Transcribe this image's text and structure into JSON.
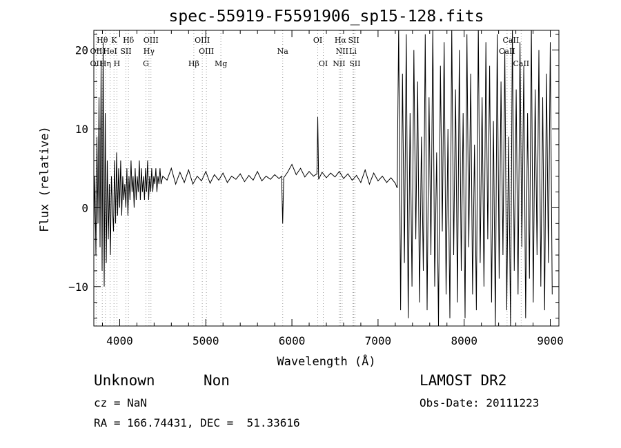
{
  "chart_data": {
    "type": "line",
    "title": "spec-55919-F5591906_sp15-128.fits",
    "xlabel": "Wavelength (Å)",
    "ylabel": "Flux (relative)",
    "xlim": [
      3700,
      9100
    ],
    "ylim": [
      -15,
      22.5
    ],
    "xticks": [
      4000,
      5000,
      6000,
      7000,
      8000,
      9000
    ],
    "xtick_labels": [
      "4000",
      "5000",
      "6000",
      "7000",
      "8000",
      "9000"
    ],
    "yticks": [
      -10,
      0,
      10,
      20
    ],
    "ytick_labels": [
      "−10",
      "0",
      "10",
      "20"
    ],
    "grid": false,
    "legend": "none",
    "line_color": "#000000",
    "marker_line_color": "#999999",
    "spectral_lines": [
      {
        "label": "Hθ",
        "x": 3798,
        "tier": 0
      },
      {
        "label": "K",
        "x": 3934,
        "tier": 0
      },
      {
        "label": "Hδ",
        "x": 4102,
        "tier": 0
      },
      {
        "label": "OIII",
        "x": 4363,
        "tier": 0
      },
      {
        "label": "OIII",
        "x": 4959,
        "tier": 0
      },
      {
        "label": "OI",
        "x": 6300,
        "tier": 0
      },
      {
        "label": "Hα",
        "x": 6563,
        "tier": 0
      },
      {
        "label": "SII",
        "x": 6717,
        "tier": 0
      },
      {
        "label": "CaII",
        "x": 8542,
        "tier": 0
      },
      {
        "label": "OII",
        "x": 3727,
        "tier": 1
      },
      {
        "label": "HeI",
        "x": 3889,
        "tier": 1
      },
      {
        "label": "SII",
        "x": 4072,
        "tier": 1
      },
      {
        "label": "Hγ",
        "x": 4340,
        "tier": 1
      },
      {
        "label": "OIII",
        "x": 5007,
        "tier": 1
      },
      {
        "label": "Na",
        "x": 5893,
        "tier": 1
      },
      {
        "label": "NII",
        "x": 6583,
        "tier": 1
      },
      {
        "label": "Li",
        "x": 6708,
        "tier": 1
      },
      {
        "label": "CaII",
        "x": 8498,
        "tier": 1
      },
      {
        "label": "OII",
        "x": 3727,
        "tier": 2
      },
      {
        "label": "Hη",
        "x": 3835,
        "tier": 2
      },
      {
        "label": "H",
        "x": 3968,
        "tier": 2
      },
      {
        "label": "G",
        "x": 4305,
        "tier": 2
      },
      {
        "label": "Hβ",
        "x": 4861,
        "tier": 2
      },
      {
        "label": "Mg",
        "x": 5175,
        "tier": 2
      },
      {
        "label": "OI",
        "x": 6364,
        "tier": 2
      },
      {
        "label": "NII",
        "x": 6548,
        "tier": 2
      },
      {
        "label": "SII",
        "x": 6731,
        "tier": 2
      },
      {
        "label": "CaII",
        "x": 8662,
        "tier": 2
      }
    ],
    "series": [
      {
        "points": [
          [
            3700,
            -3
          ],
          [
            3712,
            4
          ],
          [
            3724,
            -6
          ],
          [
            3736,
            9
          ],
          [
            3748,
            -2
          ],
          [
            3760,
            14
          ],
          [
            3772,
            -5
          ],
          [
            3784,
            18
          ],
          [
            3796,
            -8
          ],
          [
            3808,
            21
          ],
          [
            3820,
            -10
          ],
          [
            3832,
            12
          ],
          [
            3844,
            -7
          ],
          [
            3856,
            6
          ],
          [
            3868,
            -4
          ],
          [
            3880,
            3
          ],
          [
            3892,
            -6
          ],
          [
            3904,
            4
          ],
          [
            3916,
            0
          ],
          [
            3928,
            -3
          ],
          [
            3940,
            6
          ],
          [
            3952,
            -2
          ],
          [
            3964,
            7
          ],
          [
            3976,
            -1
          ],
          [
            3988,
            5
          ],
          [
            4000,
            0
          ],
          [
            4012,
            6
          ],
          [
            4024,
            -1
          ],
          [
            4036,
            4
          ],
          [
            4048,
            1
          ],
          [
            4060,
            3
          ],
          [
            4072,
            0
          ],
          [
            4084,
            5
          ],
          [
            4096,
            -1
          ],
          [
            4108,
            4
          ],
          [
            4120,
            1
          ],
          [
            4132,
            6
          ],
          [
            4144,
            2
          ],
          [
            4156,
            4
          ],
          [
            4168,
            0
          ],
          [
            4180,
            5
          ],
          [
            4192,
            1
          ],
          [
            4204,
            4
          ],
          [
            4216,
            2
          ],
          [
            4228,
            6
          ],
          [
            4240,
            1
          ],
          [
            4252,
            5
          ],
          [
            4264,
            2
          ],
          [
            4276,
            4
          ],
          [
            4288,
            1
          ],
          [
            4300,
            5
          ],
          [
            4312,
            2
          ],
          [
            4324,
            6
          ],
          [
            4336,
            1
          ],
          [
            4348,
            4
          ],
          [
            4360,
            2
          ],
          [
            4372,
            5
          ],
          [
            4384,
            2
          ],
          [
            4396,
            4
          ],
          [
            4408,
            3
          ],
          [
            4420,
            5
          ],
          [
            4432,
            2
          ],
          [
            4444,
            4
          ],
          [
            4456,
            3
          ],
          [
            4468,
            5
          ],
          [
            4480,
            3
          ],
          [
            4500,
            4
          ],
          [
            4550,
            3.5
          ],
          [
            4600,
            5
          ],
          [
            4650,
            3
          ],
          [
            4700,
            4.5
          ],
          [
            4750,
            3.2
          ],
          [
            4800,
            4.8
          ],
          [
            4850,
            3
          ],
          [
            4900,
            4
          ],
          [
            4950,
            3.4
          ],
          [
            5000,
            4.6
          ],
          [
            5050,
            3.1
          ],
          [
            5100,
            4.2
          ],
          [
            5150,
            3.5
          ],
          [
            5200,
            4.4
          ],
          [
            5250,
            3.2
          ],
          [
            5300,
            4
          ],
          [
            5350,
            3.6
          ],
          [
            5400,
            4.3
          ],
          [
            5450,
            3.3
          ],
          [
            5500,
            4.1
          ],
          [
            5550,
            3.5
          ],
          [
            5600,
            4.6
          ],
          [
            5650,
            3.4
          ],
          [
            5700,
            4
          ],
          [
            5750,
            3.6
          ],
          [
            5800,
            4.2
          ],
          [
            5850,
            3.7
          ],
          [
            5880,
            4
          ],
          [
            5893,
            -2
          ],
          [
            5905,
            3.8
          ],
          [
            5950,
            4.5
          ],
          [
            6000,
            5.5
          ],
          [
            6050,
            4.2
          ],
          [
            6100,
            5
          ],
          [
            6150,
            3.9
          ],
          [
            6200,
            4.6
          ],
          [
            6250,
            4
          ],
          [
            6290,
            4.3
          ],
          [
            6300,
            11.5
          ],
          [
            6310,
            3.6
          ],
          [
            6350,
            4.5
          ],
          [
            6400,
            3.8
          ],
          [
            6450,
            4.4
          ],
          [
            6500,
            3.9
          ],
          [
            6550,
            4.6
          ],
          [
            6600,
            3.7
          ],
          [
            6650,
            4.3
          ],
          [
            6700,
            3.5
          ],
          [
            6750,
            4.1
          ],
          [
            6800,
            3.2
          ],
          [
            6850,
            4.8
          ],
          [
            6900,
            3
          ],
          [
            6950,
            4.4
          ],
          [
            7000,
            3.4
          ],
          [
            7050,
            4
          ],
          [
            7100,
            3.2
          ],
          [
            7150,
            3.8
          ],
          [
            7200,
            3.1
          ],
          [
            7222,
            2.5
          ],
          [
            7240,
            23
          ],
          [
            7262,
            -13
          ],
          [
            7284,
            17
          ],
          [
            7306,
            -7
          ],
          [
            7328,
            22
          ],
          [
            7350,
            -14
          ],
          [
            7372,
            12
          ],
          [
            7394,
            -10
          ],
          [
            7416,
            20
          ],
          [
            7438,
            -4
          ],
          [
            7460,
            16
          ],
          [
            7482,
            -12
          ],
          [
            7504,
            9
          ],
          [
            7526,
            -8
          ],
          [
            7548,
            22
          ],
          [
            7570,
            -13
          ],
          [
            7592,
            14
          ],
          [
            7614,
            -6
          ],
          [
            7636,
            23
          ],
          [
            7658,
            -10
          ],
          [
            7680,
            7
          ],
          [
            7702,
            -15
          ],
          [
            7724,
            18
          ],
          [
            7746,
            -3
          ],
          [
            7768,
            21
          ],
          [
            7790,
            -11
          ],
          [
            7812,
            10
          ],
          [
            7834,
            -14
          ],
          [
            7856,
            23
          ],
          [
            7878,
            -6
          ],
          [
            7900,
            15
          ],
          [
            7922,
            -12
          ],
          [
            7944,
            20
          ],
          [
            7966,
            -8
          ],
          [
            7988,
            12
          ],
          [
            8010,
            -14
          ],
          [
            8032,
            22
          ],
          [
            8054,
            -5
          ],
          [
            8076,
            17
          ],
          [
            8098,
            -11
          ],
          [
            8120,
            8
          ],
          [
            8142,
            -13
          ],
          [
            8164,
            23
          ],
          [
            8186,
            -7
          ],
          [
            8208,
            14
          ],
          [
            8230,
            -10
          ],
          [
            8252,
            21
          ],
          [
            8274,
            -4
          ],
          [
            8296,
            18
          ],
          [
            8318,
            -12
          ],
          [
            8340,
            11
          ],
          [
            8362,
            -15
          ],
          [
            8384,
            22
          ],
          [
            8406,
            -9
          ],
          [
            8428,
            16
          ],
          [
            8450,
            -6
          ],
          [
            8472,
            20
          ],
          [
            8494,
            -13
          ],
          [
            8516,
            9
          ],
          [
            8538,
            -15
          ],
          [
            8560,
            23
          ],
          [
            8582,
            -8
          ],
          [
            8604,
            15
          ],
          [
            8626,
            -11
          ],
          [
            8648,
            21
          ],
          [
            8670,
            -5
          ],
          [
            8692,
            18
          ],
          [
            8714,
            -14
          ],
          [
            8736,
            12
          ],
          [
            8758,
            -9
          ],
          [
            8780,
            23
          ],
          [
            8802,
            -12
          ],
          [
            8824,
            15
          ],
          [
            8846,
            -6
          ],
          [
            8868,
            20
          ],
          [
            8890,
            -10
          ],
          [
            8912,
            14
          ],
          [
            8934,
            -13
          ],
          [
            8956,
            17
          ],
          [
            8978,
            -7
          ],
          [
            9000,
            21
          ],
          [
            9022,
            -11
          ]
        ]
      }
    ]
  },
  "info": {
    "class_label": "Unknown",
    "subclass_label": "Non",
    "cz_text": "cz = NaN",
    "coords_text": "RA = 166.74431, DEC =  51.33616",
    "survey_label": "LAMOST DR2",
    "obs_date_text": "Obs-Date: 20111223"
  }
}
